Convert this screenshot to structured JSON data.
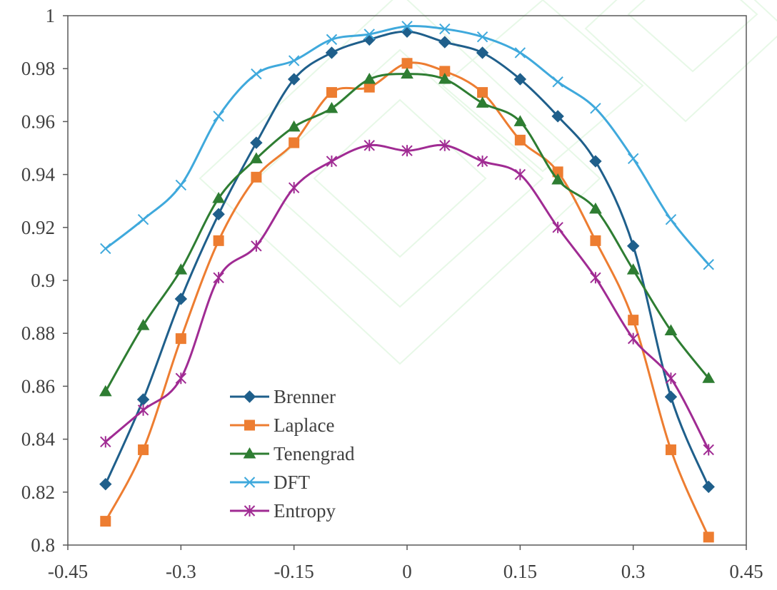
{
  "chart_data": {
    "type": "line",
    "title": "",
    "xlabel": "",
    "ylabel": "",
    "xlim": [
      -0.45,
      0.45
    ],
    "ylim": [
      0.8,
      1.0
    ],
    "x_ticks": [
      -0.45,
      -0.3,
      -0.15,
      0,
      0.15,
      0.3,
      0.45
    ],
    "x_tick_labels": [
      "-0.45",
      "-0.3",
      "-0.15",
      "0",
      "0.15",
      "0.3",
      "0.45"
    ],
    "y_ticks": [
      0.8,
      0.82,
      0.84,
      0.86,
      0.88,
      0.9,
      0.92,
      0.94,
      0.96,
      0.98,
      1.0
    ],
    "y_tick_labels": [
      "0.8",
      "0.82",
      "0.84",
      "0.86",
      "0.88",
      "0.9",
      "0.92",
      "0.94",
      "0.96",
      "0.98",
      "1"
    ],
    "grid": false,
    "legend_position": "bottom-left",
    "x": [
      -0.4,
      -0.35,
      -0.3,
      -0.25,
      -0.2,
      -0.15,
      -0.1,
      -0.05,
      0,
      0.05,
      0.1,
      0.15,
      0.2,
      0.25,
      0.3,
      0.35,
      0.4
    ],
    "series": [
      {
        "name": "Brenner",
        "color": "#1f5f8b",
        "marker": "diamond",
        "values": [
          0.823,
          0.855,
          0.893,
          0.925,
          0.952,
          0.976,
          0.986,
          0.991,
          0.994,
          0.99,
          0.986,
          0.976,
          0.962,
          0.945,
          0.913,
          0.856,
          0.822
        ]
      },
      {
        "name": "Laplace",
        "color": "#ed7d31",
        "marker": "square",
        "values": [
          0.809,
          0.836,
          0.878,
          0.915,
          0.939,
          0.952,
          0.971,
          0.973,
          0.982,
          0.979,
          0.971,
          0.953,
          0.941,
          0.915,
          0.885,
          0.836,
          0.803
        ]
      },
      {
        "name": "Tenengrad",
        "color": "#2e7d32",
        "marker": "triangle",
        "values": [
          0.858,
          0.883,
          0.904,
          0.931,
          0.946,
          0.958,
          0.965,
          0.976,
          0.978,
          0.976,
          0.967,
          0.96,
          0.938,
          0.927,
          0.904,
          0.881,
          0.863
        ]
      },
      {
        "name": "DFT",
        "color": "#3fa9dc",
        "marker": "x",
        "values": [
          0.912,
          0.923,
          0.936,
          0.962,
          0.978,
          0.983,
          0.991,
          0.993,
          0.996,
          0.995,
          0.992,
          0.986,
          0.975,
          0.965,
          0.946,
          0.923,
          0.906
        ]
      },
      {
        "name": "Entropy",
        "color": "#a02b93",
        "marker": "star",
        "values": [
          0.839,
          0.851,
          0.863,
          0.901,
          0.913,
          0.935,
          0.945,
          0.951,
          0.949,
          0.951,
          0.945,
          0.94,
          0.92,
          0.901,
          0.878,
          0.863,
          0.836
        ]
      }
    ]
  }
}
